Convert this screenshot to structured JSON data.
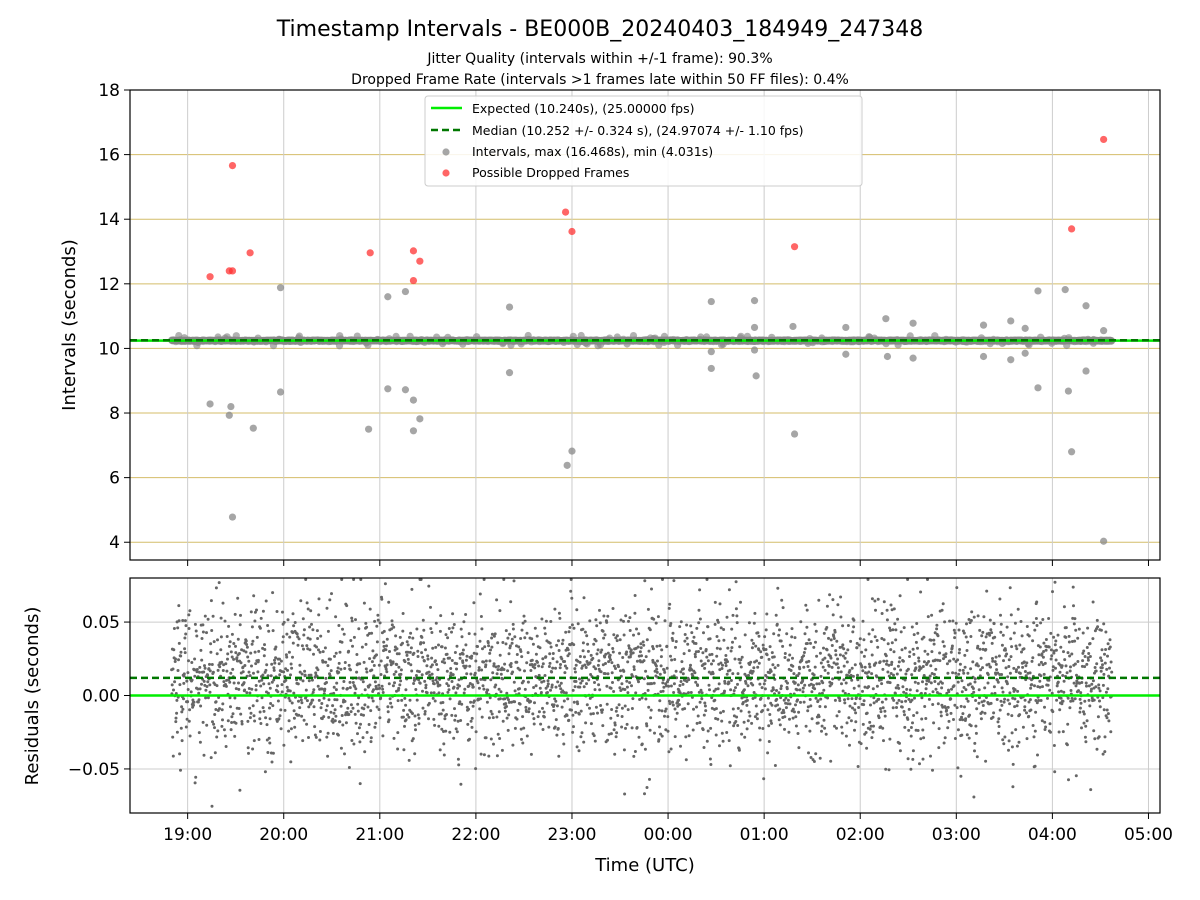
{
  "header": {
    "title": "Timestamp Intervals - BE000B_20240403_184949_247348",
    "subtitle_1": "Jitter Quality (intervals within +/-1 frame): 90.3%",
    "subtitle_2": "Dropped Frame Rate (intervals >1 frames late within 50 FF files): 0.4%"
  },
  "colors": {
    "expected": "#00ee00",
    "median": "#007700",
    "intervals": "#888888",
    "dropped": "#ff3333",
    "residuals": "#666666",
    "hgrid_top": "#d4bd6a",
    "grid": "#cccccc"
  },
  "chart_data": [
    {
      "type": "scatter",
      "ylabel": "Intervals (seconds)",
      "ylim": [
        3.45,
        18
      ],
      "yticks": [
        4,
        6,
        8,
        10,
        12,
        14,
        16,
        18
      ],
      "grid": true,
      "legend_position": "top-center",
      "legend": [
        "Expected (10.240s), (25.00000 fps)",
        "Median (10.252 +/- 0.324 s), (24.97074 +/- 1.10 fps)",
        "Intervals, max (16.468s), min (4.031s)",
        "Possible Dropped Frames"
      ],
      "expected_value": 10.24,
      "median_value": 10.252,
      "x_start_hours": 18.833,
      "x_end_hours": 28.617,
      "baseline_value": 10.24,
      "dropped_frames": [
        {
          "x": "19:14",
          "y": 12.22
        },
        {
          "x": "19:26",
          "y": 12.4
        },
        {
          "x": "19:28",
          "y": 12.4
        },
        {
          "x": "19:28",
          "y": 15.66
        },
        {
          "x": "19:39",
          "y": 12.96
        },
        {
          "x": "20:54",
          "y": 12.96
        },
        {
          "x": "21:21",
          "y": 12.1
        },
        {
          "x": "21:21",
          "y": 13.02
        },
        {
          "x": "21:25",
          "y": 12.7
        },
        {
          "x": "22:56",
          "y": 14.22
        },
        {
          "x": "23:00",
          "y": 13.62
        },
        {
          "x": "01:19",
          "y": 13.15
        },
        {
          "x": "04:12",
          "y": 13.7
        },
        {
          "x": "04:32",
          "y": 16.47
        }
      ],
      "interval_outliers": [
        {
          "x": "19:14",
          "y": 8.28
        },
        {
          "x": "19:26",
          "y": 7.93
        },
        {
          "x": "19:27",
          "y": 8.2
        },
        {
          "x": "19:28",
          "y": 4.78
        },
        {
          "x": "19:41",
          "y": 7.53
        },
        {
          "x": "19:58",
          "y": 11.88
        },
        {
          "x": "19:58",
          "y": 8.65
        },
        {
          "x": "20:53",
          "y": 7.5
        },
        {
          "x": "21:05",
          "y": 11.6
        },
        {
          "x": "21:05",
          "y": 8.75
        },
        {
          "x": "21:16",
          "y": 11.76
        },
        {
          "x": "21:16",
          "y": 8.72
        },
        {
          "x": "21:21",
          "y": 8.4
        },
        {
          "x": "21:21",
          "y": 7.45
        },
        {
          "x": "21:25",
          "y": 7.82
        },
        {
          "x": "22:21",
          "y": 11.28
        },
        {
          "x": "22:21",
          "y": 9.25
        },
        {
          "x": "22:57",
          "y": 6.38
        },
        {
          "x": "23:00",
          "y": 6.82
        },
        {
          "x": "00:27",
          "y": 11.45
        },
        {
          "x": "00:27",
          "y": 9.9
        },
        {
          "x": "00:27",
          "y": 9.38
        },
        {
          "x": "00:54",
          "y": 11.48
        },
        {
          "x": "00:54",
          "y": 10.65
        },
        {
          "x": "00:54",
          "y": 9.95
        },
        {
          "x": "00:55",
          "y": 9.15
        },
        {
          "x": "01:18",
          "y": 10.68
        },
        {
          "x": "01:19",
          "y": 7.35
        },
        {
          "x": "01:51",
          "y": 10.65
        },
        {
          "x": "01:51",
          "y": 9.82
        },
        {
          "x": "02:16",
          "y": 10.92
        },
        {
          "x": "02:17",
          "y": 9.75
        },
        {
          "x": "02:33",
          "y": 10.78
        },
        {
          "x": "02:33",
          "y": 9.7
        },
        {
          "x": "03:17",
          "y": 10.72
        },
        {
          "x": "03:17",
          "y": 9.75
        },
        {
          "x": "03:34",
          "y": 10.85
        },
        {
          "x": "03:34",
          "y": 9.65
        },
        {
          "x": "03:43",
          "y": 10.62
        },
        {
          "x": "03:43",
          "y": 9.85
        },
        {
          "x": "03:51",
          "y": 11.78
        },
        {
          "x": "03:51",
          "y": 8.78
        },
        {
          "x": "04:08",
          "y": 11.82
        },
        {
          "x": "04:10",
          "y": 8.68
        },
        {
          "x": "04:12",
          "y": 6.8
        },
        {
          "x": "04:21",
          "y": 11.32
        },
        {
          "x": "04:21",
          "y": 9.3
        },
        {
          "x": "04:32",
          "y": 10.55
        },
        {
          "x": "04:32",
          "y": 4.03
        }
      ]
    },
    {
      "type": "scatter",
      "xlabel": "Time (UTC)",
      "ylabel": "Residuals (seconds)",
      "ylim": [
        -0.08,
        0.08
      ],
      "yticks": [
        -0.05,
        0.0,
        0.05
      ],
      "ytick_labels": [
        "−0.05",
        "0.00",
        "0.05"
      ],
      "xlim_hours": [
        18.4,
        29.12
      ],
      "xticks_hours": [
        19,
        20,
        21,
        22,
        23,
        24,
        25,
        26,
        27,
        28,
        29
      ],
      "xtick_labels": [
        "19:00",
        "20:00",
        "21:00",
        "22:00",
        "23:00",
        "00:00",
        "01:00",
        "02:00",
        "03:00",
        "04:00",
        "05:00"
      ],
      "grid": true,
      "expected_residual": 0.0,
      "median_residual": 0.012,
      "residual_spread_sd": 0.025,
      "point_count": 3400
    }
  ]
}
